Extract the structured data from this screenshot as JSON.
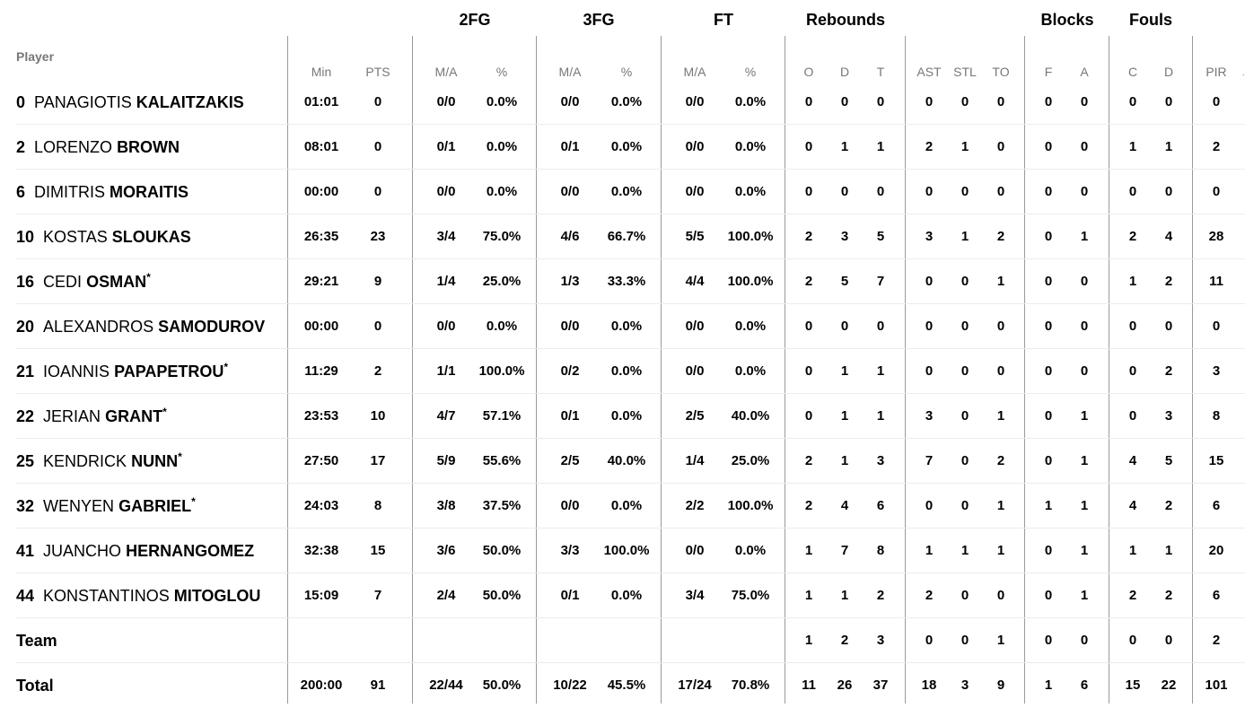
{
  "groups": {
    "fg2": "2FG",
    "fg3": "3FG",
    "ft": "FT",
    "rebounds": "Rebounds",
    "blocks": "Blocks",
    "fouls": "Fouls"
  },
  "headers": {
    "player": "Player",
    "min": "Min",
    "pts": "PTS",
    "fg2_ma": "M/A",
    "fg2_pct": "%",
    "fg3_ma": "M/A",
    "fg3_pct": "%",
    "ft_ma": "M/A",
    "ft_pct": "%",
    "reb_o": "O",
    "reb_d": "D",
    "reb_t": "T",
    "ast": "AST",
    "stl": "STL",
    "to": "TO",
    "blk_f": "F",
    "blk_a": "A",
    "foul_c": "C",
    "foul_d": "D",
    "pir": "PIR"
  },
  "players": [
    {
      "num": "0",
      "first": "PANAGIOTIS",
      "last": "KALAITZAKIS",
      "star": "",
      "min": "01:01",
      "pts": "0",
      "fg2": "0/0",
      "fg2p": "0.0%",
      "fg3": "0/0",
      "fg3p": "0.0%",
      "ft": "0/0",
      "ftp": "0.0%",
      "o": "0",
      "d": "0",
      "t": "0",
      "ast": "0",
      "stl": "0",
      "to": "0",
      "bf": "0",
      "ba": "0",
      "fc": "0",
      "fd": "0",
      "pir": "0"
    },
    {
      "num": "2",
      "first": "LORENZO",
      "last": "BROWN",
      "star": "",
      "min": "08:01",
      "pts": "0",
      "fg2": "0/1",
      "fg2p": "0.0%",
      "fg3": "0/1",
      "fg3p": "0.0%",
      "ft": "0/0",
      "ftp": "0.0%",
      "o": "0",
      "d": "1",
      "t": "1",
      "ast": "2",
      "stl": "1",
      "to": "0",
      "bf": "0",
      "ba": "0",
      "fc": "1",
      "fd": "1",
      "pir": "2"
    },
    {
      "num": "6",
      "first": "DIMITRIS",
      "last": "MORAITIS",
      "star": "",
      "min": "00:00",
      "pts": "0",
      "fg2": "0/0",
      "fg2p": "0.0%",
      "fg3": "0/0",
      "fg3p": "0.0%",
      "ft": "0/0",
      "ftp": "0.0%",
      "o": "0",
      "d": "0",
      "t": "0",
      "ast": "0",
      "stl": "0",
      "to": "0",
      "bf": "0",
      "ba": "0",
      "fc": "0",
      "fd": "0",
      "pir": "0"
    },
    {
      "num": "10",
      "first": "KOSTAS",
      "last": "SLOUKAS",
      "star": "",
      "min": "26:35",
      "pts": "23",
      "fg2": "3/4",
      "fg2p": "75.0%",
      "fg3": "4/6",
      "fg3p": "66.7%",
      "ft": "5/5",
      "ftp": "100.0%",
      "o": "2",
      "d": "3",
      "t": "5",
      "ast": "3",
      "stl": "1",
      "to": "2",
      "bf": "0",
      "ba": "1",
      "fc": "2",
      "fd": "4",
      "pir": "28"
    },
    {
      "num": "16",
      "first": "CEDI",
      "last": "OSMAN",
      "star": "*",
      "min": "29:21",
      "pts": "9",
      "fg2": "1/4",
      "fg2p": "25.0%",
      "fg3": "1/3",
      "fg3p": "33.3%",
      "ft": "4/4",
      "ftp": "100.0%",
      "o": "2",
      "d": "5",
      "t": "7",
      "ast": "0",
      "stl": "0",
      "to": "1",
      "bf": "0",
      "ba": "0",
      "fc": "1",
      "fd": "2",
      "pir": "11"
    },
    {
      "num": "20",
      "first": "ALEXANDROS",
      "last": "SAMODUROV",
      "star": "",
      "min": "00:00",
      "pts": "0",
      "fg2": "0/0",
      "fg2p": "0.0%",
      "fg3": "0/0",
      "fg3p": "0.0%",
      "ft": "0/0",
      "ftp": "0.0%",
      "o": "0",
      "d": "0",
      "t": "0",
      "ast": "0",
      "stl": "0",
      "to": "0",
      "bf": "0",
      "ba": "0",
      "fc": "0",
      "fd": "0",
      "pir": "0"
    },
    {
      "num": "21",
      "first": "IOANNIS",
      "last": "PAPAPETROU",
      "star": "*",
      "min": "11:29",
      "pts": "2",
      "fg2": "1/1",
      "fg2p": "100.0%",
      "fg3": "0/2",
      "fg3p": "0.0%",
      "ft": "0/0",
      "ftp": "0.0%",
      "o": "0",
      "d": "1",
      "t": "1",
      "ast": "0",
      "stl": "0",
      "to": "0",
      "bf": "0",
      "ba": "0",
      "fc": "0",
      "fd": "2",
      "pir": "3"
    },
    {
      "num": "22",
      "first": "JERIAN",
      "last": "GRANT",
      "star": "*",
      "min": "23:53",
      "pts": "10",
      "fg2": "4/7",
      "fg2p": "57.1%",
      "fg3": "0/1",
      "fg3p": "0.0%",
      "ft": "2/5",
      "ftp": "40.0%",
      "o": "0",
      "d": "1",
      "t": "1",
      "ast": "3",
      "stl": "0",
      "to": "1",
      "bf": "0",
      "ba": "1",
      "fc": "0",
      "fd": "3",
      "pir": "8"
    },
    {
      "num": "25",
      "first": "KENDRICK",
      "last": "NUNN",
      "star": "*",
      "min": "27:50",
      "pts": "17",
      "fg2": "5/9",
      "fg2p": "55.6%",
      "fg3": "2/5",
      "fg3p": "40.0%",
      "ft": "1/4",
      "ftp": "25.0%",
      "o": "2",
      "d": "1",
      "t": "3",
      "ast": "7",
      "stl": "0",
      "to": "2",
      "bf": "0",
      "ba": "1",
      "fc": "4",
      "fd": "5",
      "pir": "15"
    },
    {
      "num": "32",
      "first": "WENYEN",
      "last": "GABRIEL",
      "star": "*",
      "min": "24:03",
      "pts": "8",
      "fg2": "3/8",
      "fg2p": "37.5%",
      "fg3": "0/0",
      "fg3p": "0.0%",
      "ft": "2/2",
      "ftp": "100.0%",
      "o": "2",
      "d": "4",
      "t": "6",
      "ast": "0",
      "stl": "0",
      "to": "1",
      "bf": "1",
      "ba": "1",
      "fc": "4",
      "fd": "2",
      "pir": "6"
    },
    {
      "num": "41",
      "first": "JUANCHO",
      "last": "HERNANGOMEZ",
      "star": "",
      "min": "32:38",
      "pts": "15",
      "fg2": "3/6",
      "fg2p": "50.0%",
      "fg3": "3/3",
      "fg3p": "100.0%",
      "ft": "0/0",
      "ftp": "0.0%",
      "o": "1",
      "d": "7",
      "t": "8",
      "ast": "1",
      "stl": "1",
      "to": "1",
      "bf": "0",
      "ba": "1",
      "fc": "1",
      "fd": "1",
      "pir": "20"
    },
    {
      "num": "44",
      "first": "KONSTANTINOS",
      "last": "MITOGLOU",
      "star": "",
      "min": "15:09",
      "pts": "7",
      "fg2": "2/4",
      "fg2p": "50.0%",
      "fg3": "0/1",
      "fg3p": "0.0%",
      "ft": "3/4",
      "ftp": "75.0%",
      "o": "1",
      "d": "1",
      "t": "2",
      "ast": "2",
      "stl": "0",
      "to": "0",
      "bf": "0",
      "ba": "1",
      "fc": "2",
      "fd": "2",
      "pir": "6"
    }
  ],
  "team": {
    "label": "Team",
    "min": "",
    "pts": "",
    "fg2": "",
    "fg2p": "",
    "fg3": "",
    "fg3p": "",
    "ft": "",
    "ftp": "",
    "o": "1",
    "d": "2",
    "t": "3",
    "ast": "0",
    "stl": "0",
    "to": "1",
    "bf": "0",
    "ba": "0",
    "fc": "0",
    "fd": "0",
    "pir": "2"
  },
  "total": {
    "label": "Total",
    "min": "200:00",
    "pts": "91",
    "fg2": "22/44",
    "fg2p": "50.0%",
    "fg3": "10/22",
    "fg3p": "45.5%",
    "ft": "17/24",
    "ftp": "70.8%",
    "o": "11",
    "d": "26",
    "t": "37",
    "ast": "18",
    "stl": "3",
    "to": "9",
    "bf": "1",
    "ba": "6",
    "fc": "15",
    "fd": "22",
    "pir": "101"
  },
  "scroll_indicator": "·"
}
